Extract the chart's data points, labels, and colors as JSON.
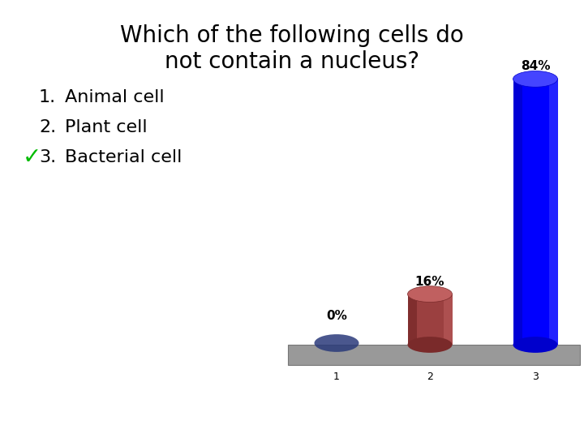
{
  "title_line1": "Which of the following cells do",
  "title_line2": "not contain a nucleus?",
  "items": [
    {
      "num": "1.",
      "text": "Animal cell",
      "check": false
    },
    {
      "num": "2.",
      "text": "Plant cell",
      "check": false
    },
    {
      "num": "3.",
      "text": "Bacterial cell",
      "check": true
    }
  ],
  "bar_values": [
    0,
    16,
    84
  ],
  "bar_labels": [
    "0%",
    "16%",
    "84%"
  ],
  "bar_color_main": [
    "#4444aa",
    "#9b4040",
    "#0000ff"
  ],
  "bar_color_dark": [
    "#2a2a88",
    "#7a2a2a",
    "#0000cc"
  ],
  "bar_color_light": [
    "#6666cc",
    "#c06060",
    "#4444ff"
  ],
  "ellipse_shadow": [
    "#2a3a7a",
    "#5a1a1a",
    "#00008a"
  ],
  "floor_color": "#999999",
  "floor_edge_color": "#777777",
  "x_labels": [
    "1",
    "2",
    "3"
  ],
  "background_color": "#ffffff",
  "check_color": "#00bb00",
  "title_fontsize": 20,
  "item_fontsize": 16,
  "bar_label_fontsize": 11,
  "x_label_fontsize": 9
}
